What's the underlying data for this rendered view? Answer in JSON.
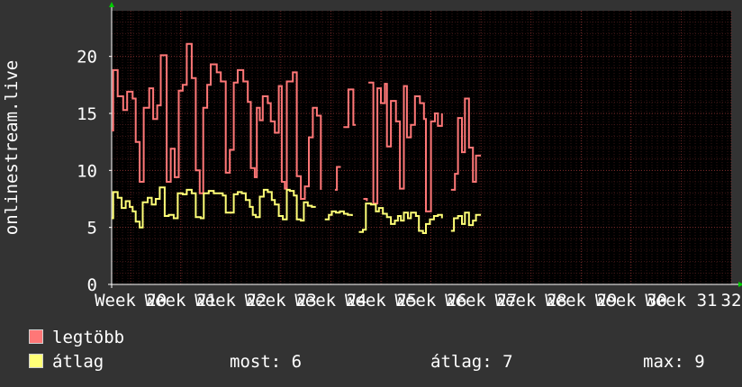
{
  "chart_data": {
    "type": "line",
    "ylabel": "onlinestream.live",
    "ylim": [
      0,
      24
    ],
    "yticks": [
      0,
      5,
      10,
      15,
      20
    ],
    "x_range": [
      19.62,
      32.0
    ],
    "xticks": [
      {
        "x": 20,
        "label": "Week 20"
      },
      {
        "x": 21,
        "label": "Week 21"
      },
      {
        "x": 22,
        "label": "Week 22"
      },
      {
        "x": 23,
        "label": "Week 23"
      },
      {
        "x": 24,
        "label": "Week 24"
      },
      {
        "x": 25,
        "label": "Week 25"
      },
      {
        "x": 26,
        "label": "Week 26"
      },
      {
        "x": 27,
        "label": "Week 27"
      },
      {
        "x": 28,
        "label": "Week 28"
      },
      {
        "x": 29,
        "label": "Week 29"
      },
      {
        "x": 30,
        "label": "Week 30"
      },
      {
        "x": 31,
        "label": "Week 31"
      },
      {
        "x": 32,
        "label": "32"
      }
    ],
    "grid": true,
    "colors": {
      "background": "#333333",
      "plot_bg": "#000000",
      "grid": "#5a2020",
      "axis": "#ffffff",
      "arrow": "#00cc00"
    },
    "series": [
      {
        "name": "legtöbb",
        "color": "#ff7777",
        "points": [
          [
            19.62,
            13.5
          ],
          [
            19.65,
            18.8
          ],
          [
            19.74,
            16.5
          ],
          [
            19.85,
            15.3
          ],
          [
            19.93,
            16.9
          ],
          [
            20.04,
            16.3
          ],
          [
            20.1,
            12.5
          ],
          [
            20.18,
            9.0
          ],
          [
            20.26,
            15.5
          ],
          [
            20.37,
            17.2
          ],
          [
            20.45,
            14.5
          ],
          [
            20.53,
            15.7
          ],
          [
            20.6,
            20.1
          ],
          [
            20.72,
            9.0
          ],
          [
            20.8,
            11.9
          ],
          [
            20.88,
            9.4
          ],
          [
            20.96,
            17.0
          ],
          [
            21.04,
            17.5
          ],
          [
            21.12,
            21.1
          ],
          [
            21.22,
            18.1
          ],
          [
            21.3,
            10.0
          ],
          [
            21.38,
            8.0
          ],
          [
            21.45,
            15.5
          ],
          [
            21.53,
            17.5
          ],
          [
            21.6,
            19.3
          ],
          [
            21.72,
            18.6
          ],
          [
            21.8,
            17.8
          ],
          [
            21.9,
            9.8
          ],
          [
            21.98,
            11.8
          ],
          [
            22.06,
            17.7
          ],
          [
            22.14,
            18.8
          ],
          [
            22.25,
            17.8
          ],
          [
            22.34,
            16.0
          ],
          [
            22.4,
            10.2
          ],
          [
            22.48,
            9.4
          ],
          [
            22.52,
            15.5
          ],
          [
            22.58,
            14.4
          ],
          [
            22.64,
            16.5
          ],
          [
            22.74,
            15.9
          ],
          [
            22.8,
            14.3
          ],
          [
            22.88,
            13.3
          ],
          [
            22.96,
            17.4
          ],
          [
            23.02,
            9.0
          ],
          [
            23.08,
            8.4
          ],
          [
            23.12,
            17.8
          ],
          [
            23.24,
            18.6
          ],
          [
            23.32,
            9.5
          ],
          [
            23.4,
            7.5
          ],
          [
            23.48,
            8.6
          ],
          [
            23.56,
            12.9
          ],
          [
            23.64,
            15.5
          ],
          [
            23.72,
            14.8
          ],
          [
            23.8,
            8.3
          ]
        ],
        "segments2": [
          [
            [
              24.08,
              8.3
            ],
            [
              24.12,
              10.3
            ],
            [
              24.2,
              10.3
            ]
          ],
          [
            [
              24.25,
              13.8
            ],
            [
              24.33,
              13.8
            ],
            [
              24.35,
              17.1
            ],
            [
              24.45,
              14.0
            ],
            [
              24.5,
              14.0
            ]
          ],
          [
            [
              24.65,
              7.5
            ],
            [
              24.72,
              7.3
            ]
          ],
          [
            [
              24.75,
              17.7
            ],
            [
              24.85,
              7.1
            ],
            [
              24.93,
              17.2
            ],
            [
              25.0,
              15.9
            ],
            [
              25.08,
              17.6
            ],
            [
              25.12,
              12.1
            ],
            [
              25.2,
              16.1
            ],
            [
              25.3,
              14.3
            ],
            [
              25.38,
              8.4
            ],
            [
              25.46,
              17.4
            ],
            [
              25.52,
              12.9
            ],
            [
              25.6,
              14.0
            ],
            [
              25.68,
              16.5
            ],
            [
              25.78,
              15.9
            ],
            [
              25.86,
              14.5
            ],
            [
              25.9,
              6.4
            ],
            [
              26.0,
              14.3
            ],
            [
              26.08,
              15.0
            ],
            [
              26.14,
              13.9
            ],
            [
              26.22,
              15.0
            ]
          ],
          [
            [
              26.4,
              8.3
            ],
            [
              26.48,
              9.7
            ],
            [
              26.54,
              14.6
            ],
            [
              26.62,
              11.6
            ],
            [
              26.68,
              16.3
            ],
            [
              26.76,
              12.0
            ],
            [
              26.84,
              9.0
            ],
            [
              26.9,
              11.3
            ],
            [
              27.0,
              11.3
            ]
          ]
        ]
      },
      {
        "name": "átlag",
        "color": "#ffff77",
        "points": [
          [
            19.62,
            5.8
          ],
          [
            19.65,
            8.1
          ],
          [
            19.74,
            7.6
          ],
          [
            19.82,
            6.7
          ],
          [
            19.9,
            7.3
          ],
          [
            19.98,
            6.8
          ],
          [
            20.04,
            6.4
          ],
          [
            20.1,
            5.5
          ],
          [
            20.18,
            5.0
          ],
          [
            20.24,
            7.2
          ],
          [
            20.34,
            7.6
          ],
          [
            20.42,
            7.0
          ],
          [
            20.5,
            7.5
          ],
          [
            20.58,
            8.5
          ],
          [
            20.68,
            6.0
          ],
          [
            20.76,
            6.1
          ],
          [
            20.86,
            5.8
          ],
          [
            20.94,
            8.0
          ],
          [
            21.04,
            7.9
          ],
          [
            21.12,
            8.3
          ],
          [
            21.22,
            8.0
          ],
          [
            21.3,
            5.9
          ],
          [
            21.4,
            5.8
          ],
          [
            21.46,
            8.0
          ],
          [
            21.56,
            8.2
          ],
          [
            21.66,
            8.0
          ],
          [
            21.74,
            8.0
          ],
          [
            21.84,
            7.8
          ],
          [
            21.9,
            6.3
          ],
          [
            22.0,
            6.3
          ],
          [
            22.06,
            7.9
          ],
          [
            22.14,
            8.1
          ],
          [
            22.22,
            8.0
          ],
          [
            22.3,
            7.4
          ],
          [
            22.38,
            6.8
          ],
          [
            22.44,
            6.1
          ],
          [
            22.5,
            5.9
          ],
          [
            22.58,
            7.7
          ],
          [
            22.66,
            8.3
          ],
          [
            22.74,
            8.1
          ],
          [
            22.82,
            7.4
          ],
          [
            22.88,
            7.0
          ],
          [
            22.96,
            6.0
          ],
          [
            23.04,
            5.7
          ],
          [
            23.12,
            8.3
          ],
          [
            23.18,
            8.2
          ],
          [
            23.26,
            7.8
          ],
          [
            23.32,
            5.7
          ],
          [
            23.4,
            5.6
          ],
          [
            23.46,
            7.2
          ],
          [
            23.54,
            6.9
          ],
          [
            23.62,
            6.8
          ],
          [
            23.7,
            6.8
          ]
        ],
        "segments2": [
          [
            [
              23.88,
              5.7
            ],
            [
              23.96,
              6.1
            ],
            [
              24.02,
              6.4
            ],
            [
              24.1,
              6.3
            ],
            [
              24.18,
              6.4
            ],
            [
              24.26,
              6.2
            ],
            [
              24.34,
              6.1
            ],
            [
              24.42,
              6.0
            ]
          ],
          [
            [
              24.56,
              4.6
            ],
            [
              24.64,
              4.8
            ],
            [
              24.7,
              7.1
            ],
            [
              24.8,
              7.0
            ],
            [
              24.9,
              6.4
            ],
            [
              24.96,
              6.7
            ],
            [
              25.04,
              6.2
            ],
            [
              25.12,
              5.9
            ],
            [
              25.2,
              5.3
            ],
            [
              25.28,
              5.6
            ],
            [
              25.34,
              6.0
            ],
            [
              25.4,
              5.6
            ],
            [
              25.46,
              6.3
            ],
            [
              25.54,
              5.8
            ],
            [
              25.6,
              6.3
            ],
            [
              25.7,
              6.0
            ],
            [
              25.76,
              4.7
            ],
            [
              25.84,
              4.5
            ],
            [
              25.9,
              5.3
            ],
            [
              25.98,
              5.7
            ],
            [
              26.06,
              6.0
            ],
            [
              26.14,
              6.1
            ],
            [
              26.22,
              5.8
            ]
          ],
          [
            [
              26.4,
              4.7
            ],
            [
              26.46,
              5.8
            ],
            [
              26.54,
              6.0
            ],
            [
              26.62,
              5.3
            ],
            [
              26.68,
              6.3
            ],
            [
              26.76,
              5.2
            ],
            [
              26.84,
              5.6
            ],
            [
              26.9,
              6.1
            ],
            [
              27.0,
              6.1
            ]
          ]
        ]
      }
    ]
  },
  "legend": [
    {
      "label": "legtöbb",
      "color": "#ff7777"
    },
    {
      "label": "átlag",
      "color": "#ffff77"
    }
  ],
  "stats": {
    "most": "most: 6",
    "atlag": "átlag: 7",
    "max": "max: 9"
  }
}
